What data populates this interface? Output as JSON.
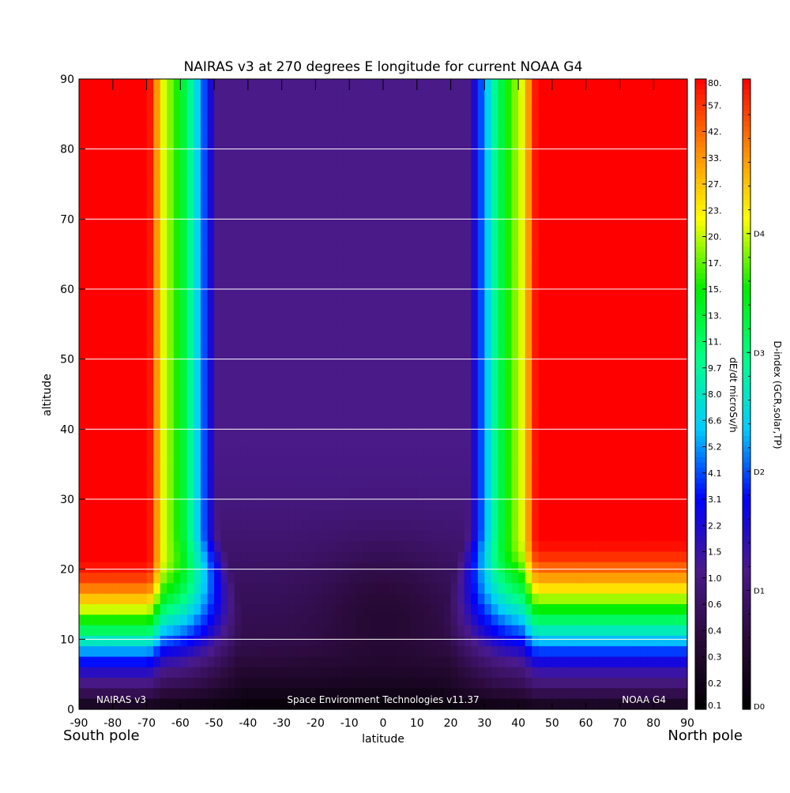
{
  "chart_data": {
    "type": "heatmap",
    "title": "NAIRAS v3 at 270 degrees E longitude for current NOAA G4",
    "xlabel": "latitude",
    "ylabel": "altitude",
    "xlim": [
      -90,
      90
    ],
    "ylim": [
      0,
      90
    ],
    "x_ticks": [
      "-90",
      "-80",
      "-70",
      "-60",
      "-50",
      "-40",
      "-30",
      "-20",
      "-10",
      "0",
      "10",
      "20",
      "30",
      "40",
      "50",
      "60",
      "70",
      "80",
      "90"
    ],
    "y_ticks": [
      "0",
      "10",
      "20",
      "30",
      "40",
      "50",
      "60",
      "70",
      "80",
      "90"
    ],
    "grid": "horizontal",
    "left_pole_label": "South pole",
    "right_pole_label": "North pole",
    "footer_left": "NAIRAS v3",
    "footer_center": "Space Environment Technologies v11.37",
    "footer_right": "NOAA G4",
    "colorbar_dose": {
      "label": "dE/dt microSv/h",
      "ticks": [
        "0.1",
        "0.2",
        "0.3",
        "0.4",
        "0.6",
        "1.0",
        "1.5",
        "2.2",
        "3.1",
        "4.1",
        "5.2",
        "6.6",
        "8.0",
        "9.7",
        "11.",
        "13.",
        "15.",
        "17.",
        "20.",
        "23.",
        "27.",
        "33.",
        "42.",
        "57.",
        "80."
      ]
    },
    "colorbar_dindex": {
      "label": "D-index (GCR,solar,TP)",
      "ticks": [
        "D0",
        "D1",
        "D2",
        "D3",
        "D4"
      ]
    },
    "colormap": [
      "#000000",
      "#2a0a3a",
      "#4a1a8a",
      "#0000ff",
      "#00ccff",
      "#00ff88",
      "#00ee00",
      "#ffff00",
      "#ff8800",
      "#ff0000"
    ],
    "field": {
      "description_levels": "normalized dose level 0..1 by latitude (columns) and altitude (rows)",
      "polar_cap_altitude_south": 21,
      "polar_cap_altitude_north": 24,
      "cutoff_band_latitude_south": -64,
      "cutoff_band_latitude_north": 40
    }
  }
}
